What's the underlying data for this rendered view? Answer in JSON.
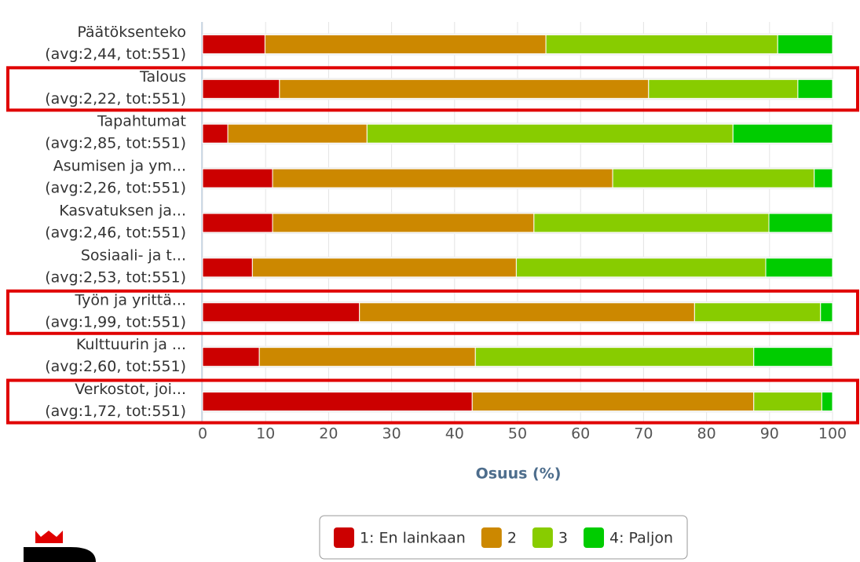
{
  "chart_data": {
    "type": "stacked_bar_horizontal",
    "categories": [
      "Päätöksenteko",
      "Talous",
      "Tapahtumat",
      "Asumisen ja ym...",
      "Kasvatuksen ja...",
      "Sosiaali- ja t...",
      "Työn ja yrittä...",
      "Kulttuurin ja ...",
      "Verkostot, joi..."
    ],
    "category_stats": [
      "(avg:2,44, tot:551)",
      "(avg:2,22, tot:551)",
      "(avg:2,85, tot:551)",
      "(avg:2,26, tot:551)",
      "(avg:2,46, tot:551)",
      "(avg:2,53, tot:551)",
      "(avg:1,99, tot:551)",
      "(avg:2,60, tot:551)",
      "(avg:1,72, tot:551)"
    ],
    "series": [
      {
        "name": "1: En lainkaan",
        "color": "#cc0000",
        "values": [
          9.9,
          12.2,
          4.0,
          11.1,
          11.1,
          7.9,
          24.9,
          9.0,
          42.8
        ]
      },
      {
        "name": "2",
        "color": "#cc8800",
        "values": [
          44.6,
          58.6,
          22.1,
          54.0,
          41.5,
          41.9,
          53.2,
          34.3,
          44.7
        ]
      },
      {
        "name": "3",
        "color": "#88cc00",
        "values": [
          36.8,
          23.7,
          58.1,
          32.0,
          37.3,
          39.6,
          20.0,
          44.2,
          10.8
        ]
      },
      {
        "name": "4: Paljon",
        "color": "#00cc00",
        "values": [
          8.7,
          5.5,
          15.8,
          2.9,
          10.1,
          10.6,
          1.9,
          12.5,
          1.7
        ]
      }
    ],
    "xlabel": "Osuus (%)",
    "xlim": [
      0,
      100
    ],
    "xticks": [
      0,
      10,
      20,
      30,
      40,
      50,
      60,
      70,
      80,
      90,
      100
    ],
    "grid": true,
    "highlighted": [
      1,
      6,
      8
    ],
    "highlight_color": "#e00000",
    "legend": "bottom"
  }
}
